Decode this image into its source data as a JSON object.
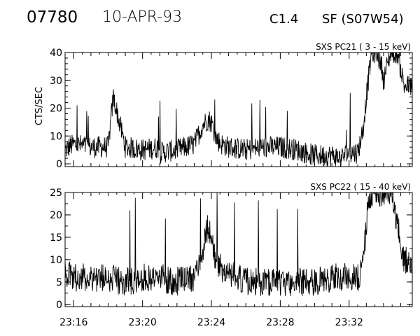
{
  "header": {
    "event_id": "07780",
    "date": "10-APR-93",
    "goes_class": "C1.4",
    "flare": "SF (S07W54)"
  },
  "chart_data": [
    {
      "type": "line",
      "title": "SXS PC21  (  3 - 15 keV)",
      "ylabel": "CTS/SEC",
      "xlabel": "",
      "x_ticks": [
        "23:16",
        "23:20",
        "23:24",
        "23:28",
        "23:32"
      ],
      "xlim": [
        "23:15:30",
        "23:35:40"
      ],
      "ylim": [
        -1,
        40
      ],
      "y_ticks": [
        0,
        10,
        20,
        30,
        40
      ],
      "series": [
        {
          "x_minutes_from_23_16": [
            -0.5,
            0,
            1,
            2,
            2.3,
            3,
            4,
            5,
            5,
            6,
            7,
            7.5,
            7.8,
            8,
            8.3,
            8.6,
            9,
            10,
            11,
            12,
            13,
            14,
            15,
            15.5,
            16,
            16.5,
            16.8,
            17,
            17.3,
            17.6,
            17.9,
            18,
            18.4,
            18.8,
            19.2
          ],
          "values": [
            5,
            7,
            6,
            6,
            24,
            6,
            5,
            6,
            4,
            5,
            7,
            14,
            16,
            15,
            9,
            7,
            6,
            5,
            6,
            6,
            5,
            3,
            3,
            2,
            4,
            4,
            12,
            24,
            40,
            40,
            35,
            30,
            40,
            40,
            28
          ]
        }
      ],
      "grid": false
    },
    {
      "type": "line",
      "title": "SXS PC22  ( 15 - 40 keV)",
      "ylabel": "",
      "xlabel": "",
      "x_ticks": [
        "23:16",
        "23:20",
        "23:24",
        "23:28",
        "23:32"
      ],
      "xlim": [
        "23:15:30",
        "23:35:40"
      ],
      "ylim": [
        -0.5,
        25
      ],
      "y_ticks": [
        0,
        5,
        10,
        15,
        20,
        25
      ],
      "series": [
        {
          "x_minutes_from_23_16": [
            -0.5,
            0,
            1,
            2,
            3,
            4,
            5,
            6,
            7,
            7.5,
            7.8,
            8.2,
            8.6,
            9,
            10,
            11,
            12,
            13,
            14,
            15,
            16,
            16.6,
            16.9,
            17.1,
            17.3,
            17.6,
            17.9,
            18.2,
            18.5,
            18.8,
            19.2
          ],
          "values": [
            7,
            6,
            6,
            6,
            5,
            6,
            6,
            5,
            6,
            12,
            18,
            10,
            8,
            7,
            5,
            5,
            5,
            5,
            5,
            6,
            6,
            6,
            13,
            22,
            25,
            25,
            25,
            25,
            25,
            18,
            10
          ]
        }
      ],
      "grid": false
    }
  ]
}
